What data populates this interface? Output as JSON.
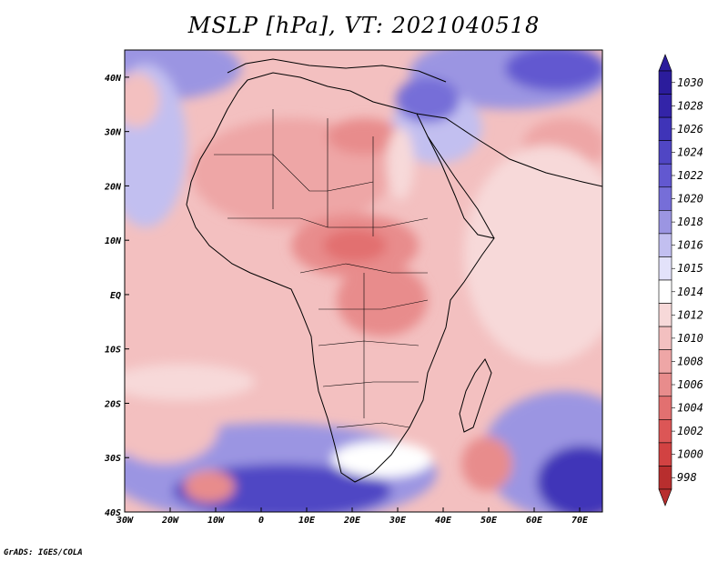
{
  "title": "MSLP [hPa], VT: 2021040518",
  "credit": "GrADS: IGES/COLA",
  "map": {
    "lon_range": [
      -30,
      75
    ],
    "lat_range": [
      -40,
      45
    ],
    "lon_ticks": [
      {
        "value": -30,
        "label": "30W"
      },
      {
        "value": -20,
        "label": "20W"
      },
      {
        "value": -10,
        "label": "10W"
      },
      {
        "value": 0,
        "label": "0"
      },
      {
        "value": 10,
        "label": "10E"
      },
      {
        "value": 20,
        "label": "20E"
      },
      {
        "value": 30,
        "label": "30E"
      },
      {
        "value": 40,
        "label": "40E"
      },
      {
        "value": 50,
        "label": "50E"
      },
      {
        "value": 60,
        "label": "60E"
      },
      {
        "value": 70,
        "label": "70E"
      }
    ],
    "lat_ticks": [
      {
        "value": 40,
        "label": "40N"
      },
      {
        "value": 30,
        "label": "30N"
      },
      {
        "value": 20,
        "label": "20N"
      },
      {
        "value": 10,
        "label": "10N"
      },
      {
        "value": 0,
        "label": "EQ"
      },
      {
        "value": -10,
        "label": "10S"
      },
      {
        "value": -20,
        "label": "20S"
      },
      {
        "value": -30,
        "label": "30S"
      },
      {
        "value": -40,
        "label": "40S"
      }
    ]
  },
  "colorbar": {
    "levels": [
      {
        "label": "1030",
        "color": "#2b1c9c"
      },
      {
        "label": "1028",
        "color": "#3324a8"
      },
      {
        "label": "1026",
        "color": "#3f34b8"
      },
      {
        "label": "1024",
        "color": "#5046c4"
      },
      {
        "label": "1022",
        "color": "#6258d0"
      },
      {
        "label": "1020",
        "color": "#766ed8"
      },
      {
        "label": "1018",
        "color": "#9b95e2"
      },
      {
        "label": "1016",
        "color": "#c2bff0"
      },
      {
        "label": "1015",
        "color": "#e3e2fa"
      },
      {
        "label": "1014",
        "color": "#ffffff"
      },
      {
        "label": "1012",
        "color": "#f7d9d9"
      },
      {
        "label": "1010",
        "color": "#f3c0c0"
      },
      {
        "label": "1008",
        "color": "#eea6a6"
      },
      {
        "label": "1006",
        "color": "#e88c8c"
      },
      {
        "label": "1004",
        "color": "#e27070"
      },
      {
        "label": "1002",
        "color": "#dc5656"
      },
      {
        "label": "1000",
        "color": "#d24242"
      },
      {
        "label": "998",
        "color": "#b82e2e"
      }
    ]
  }
}
